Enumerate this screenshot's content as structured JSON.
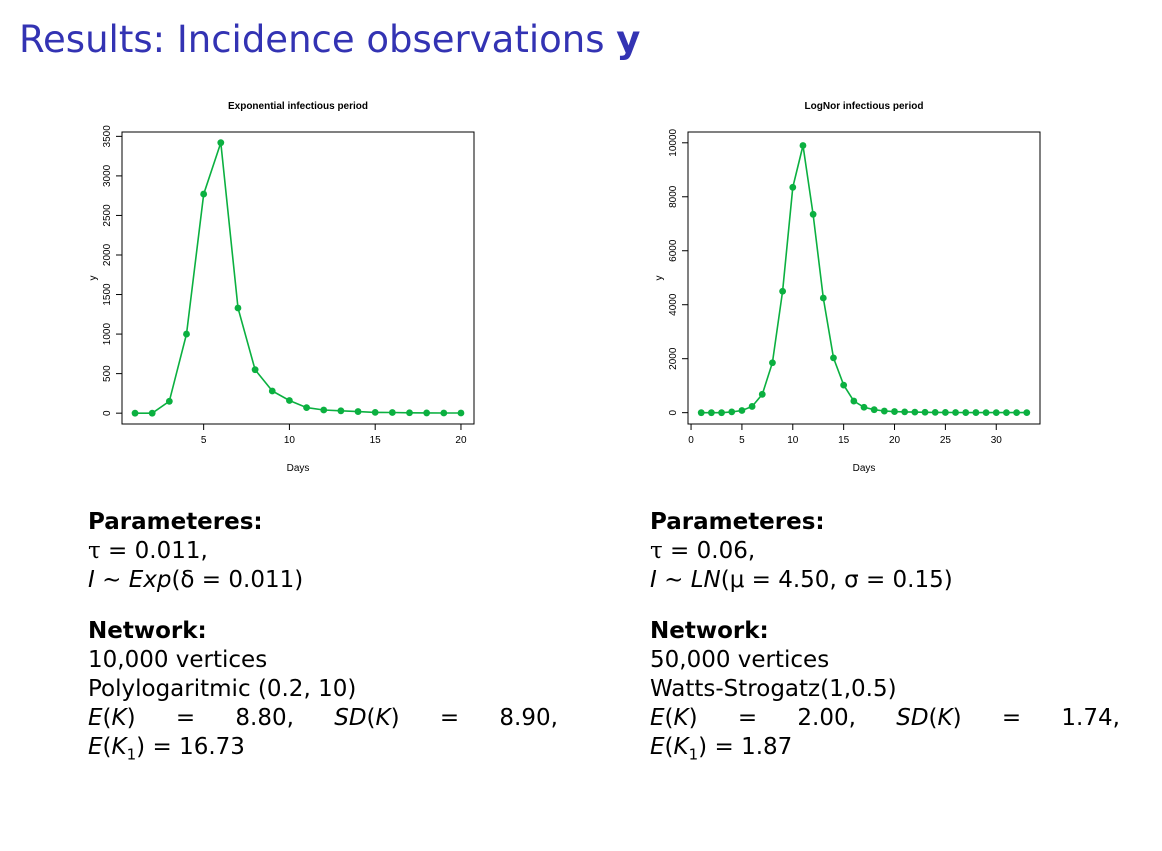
{
  "title": {
    "text": "Results: Incidence observations",
    "bold_symbol": "y"
  },
  "accent_color": "#3333b3",
  "series_color": "#0bb040",
  "panels": [
    {
      "param_heading": "Parameteres:",
      "tau_value": "0.011,",
      "dist_name": "Exp",
      "dist_params": "(δ = 0.011)",
      "network_heading": "Network:",
      "vertices": "10,000 vertices",
      "graph_type": "Polylogaritmic (0.2, 10)",
      "ek": "8.80,",
      "sdk": "8.90,",
      "ek1": "16.73"
    },
    {
      "param_heading": "Parameteres:",
      "tau_value": "0.06,",
      "dist_name": "LN",
      "dist_params": "(μ = 4.50, σ = 0.15)",
      "network_heading": "Network:",
      "vertices": "50,000 vertices",
      "graph_type": "Watts-Strogatz(1,0.5)",
      "ek": "2.00,",
      "sdk": "1.74,",
      "ek1": "1.87"
    }
  ],
  "chart_data": [
    {
      "type": "line",
      "title": "Exponential infectious period",
      "xlabel": "Days",
      "ylabel": "y",
      "xlim": [
        0.24,
        20.76
      ],
      "ylim": [
        -137,
        3555
      ],
      "xticks": [
        5,
        10,
        15,
        20
      ],
      "yticks": [
        0,
        500,
        1000,
        1500,
        2000,
        2500,
        3000,
        3500
      ],
      "grid": false,
      "x": [
        1,
        2,
        3,
        4,
        5,
        6,
        7,
        8,
        9,
        10,
        11,
        12,
        13,
        14,
        15,
        16,
        17,
        18,
        19,
        20
      ],
      "series": [
        {
          "values": [
            0,
            0,
            150,
            1000,
            2770,
            3420,
            1330,
            550,
            280,
            160,
            70,
            40,
            30,
            20,
            10,
            8,
            5,
            3,
            2,
            2
          ]
        }
      ]
    },
    {
      "type": "line",
      "title": "LogNor infectious period",
      "xlabel": "Days",
      "ylabel": "y",
      "xlim": [
        -0.3,
        34.3
      ],
      "ylim": [
        -420,
        10400
      ],
      "xticks": [
        0,
        5,
        10,
        15,
        20,
        25,
        30
      ],
      "yticks": [
        0,
        2000,
        4000,
        6000,
        8000,
        10000
      ],
      "grid": false,
      "x": [
        1,
        2,
        3,
        4,
        5,
        6,
        7,
        8,
        9,
        10,
        11,
        12,
        13,
        14,
        15,
        16,
        17,
        18,
        19,
        20,
        21,
        22,
        23,
        24,
        25,
        26,
        27,
        28,
        29,
        30,
        31,
        32,
        33
      ],
      "series": [
        {
          "values": [
            0,
            0,
            0,
            30,
            80,
            230,
            680,
            1850,
            4500,
            8350,
            9900,
            7350,
            4250,
            2030,
            1020,
            430,
            200,
            110,
            60,
            40,
            30,
            20,
            15,
            10,
            8,
            5,
            4,
            3,
            2,
            2,
            1,
            1,
            1
          ]
        }
      ]
    }
  ]
}
